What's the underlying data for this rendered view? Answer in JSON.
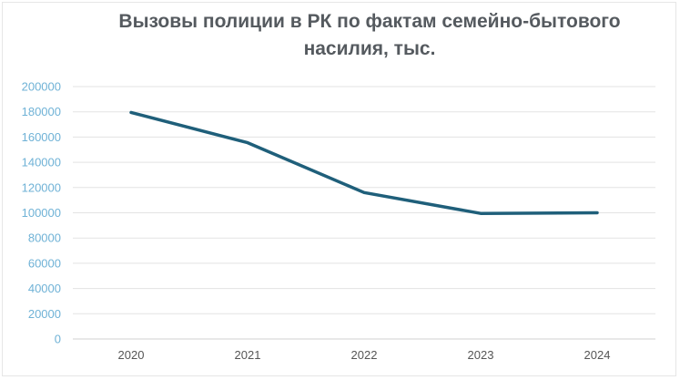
{
  "chart_data": {
    "type": "line",
    "title_line1": "Вызовы полиции в РК по фактам семейно-бытового",
    "title_line2": "насилия, тыс.",
    "categories": [
      "2020",
      "2021",
      "2022",
      "2023",
      "2024"
    ],
    "series": [
      {
        "values": [
          179500,
          155500,
          116000,
          99500,
          100000
        ],
        "color": "#1f5f7a"
      }
    ],
    "ylim": [
      0,
      200000
    ],
    "yticks": [
      "0",
      "20000",
      "40000",
      "60000",
      "80000",
      "100000",
      "120000",
      "140000",
      "160000",
      "180000",
      "200000"
    ],
    "grid": true,
    "legend": "none",
    "colors": {
      "ytick_labels": "#6fb2d6",
      "title": "#555a5f"
    }
  }
}
